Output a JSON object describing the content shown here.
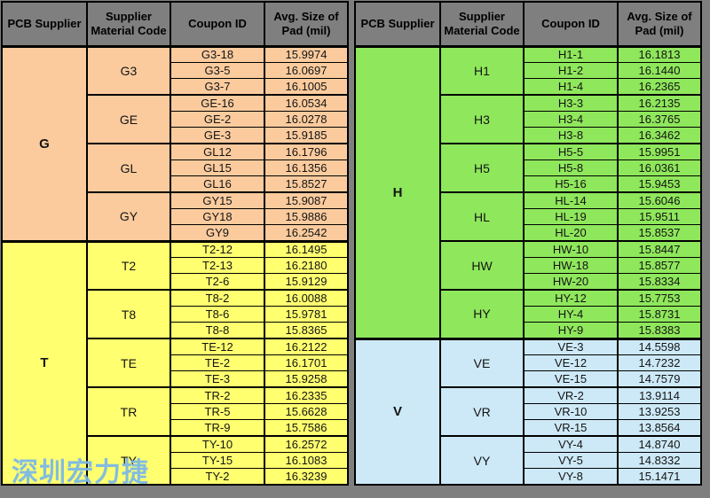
{
  "colors": {
    "page_bg": "#7F7F7F",
    "header_bg": "#7F7F7F",
    "supplier_g": "#FBCB9E",
    "supplier_t": "#FFFF70",
    "supplier_h": "#8FE75C",
    "supplier_v": "#CDE9F7",
    "watermark": "#79B7EA",
    "border": "#000000"
  },
  "watermark": {
    "text": "深圳宏力捷"
  },
  "tables": [
    {
      "name": "data-table-left",
      "headers": [
        "PCB Supplier",
        "Supplier Material Code",
        "Coupon ID",
        "Avg. Size of Pad (mil)"
      ],
      "suppliers": [
        {
          "name": "G",
          "color_key": "supplier_g",
          "groups": [
            {
              "code": "G3",
              "rows": [
                [
                  "G3-18",
                  "15.9974"
                ],
                [
                  "G3-5",
                  "16.0697"
                ],
                [
                  "G3-7",
                  "16.1005"
                ]
              ]
            },
            {
              "code": "GE",
              "rows": [
                [
                  "GE-16",
                  "16.0534"
                ],
                [
                  "GE-2",
                  "16.0278"
                ],
                [
                  "GE-3",
                  "15.9185"
                ]
              ]
            },
            {
              "code": "GL",
              "rows": [
                [
                  "GL12",
                  "16.1796"
                ],
                [
                  "GL15",
                  "16.1356"
                ],
                [
                  "GL16",
                  "15.8527"
                ]
              ]
            },
            {
              "code": "GY",
              "rows": [
                [
                  "GY15",
                  "15.9087"
                ],
                [
                  "GY18",
                  "15.9886"
                ],
                [
                  "GY9",
                  "16.2542"
                ]
              ]
            }
          ]
        },
        {
          "name": "T",
          "color_key": "supplier_t",
          "groups": [
            {
              "code": "T2",
              "rows": [
                [
                  "T2-12",
                  "16.1495"
                ],
                [
                  "T2-13",
                  "16.2180"
                ],
                [
                  "T2-6",
                  "15.9129"
                ]
              ]
            },
            {
              "code": "T8",
              "rows": [
                [
                  "T8-2",
                  "16.0088"
                ],
                [
                  "T8-6",
                  "15.9781"
                ],
                [
                  "T8-8",
                  "15.8365"
                ]
              ]
            },
            {
              "code": "TE",
              "rows": [
                [
                  "TE-12",
                  "16.2122"
                ],
                [
                  "TE-2",
                  "16.1701"
                ],
                [
                  "TE-3",
                  "15.9258"
                ]
              ]
            },
            {
              "code": "TR",
              "rows": [
                [
                  "TR-2",
                  "16.2335"
                ],
                [
                  "TR-5",
                  "15.6628"
                ],
                [
                  "TR-9",
                  "15.7586"
                ]
              ]
            },
            {
              "code": "TY",
              "rows": [
                [
                  "TY-10",
                  "16.2572"
                ],
                [
                  "TY-15",
                  "16.1083"
                ],
                [
                  "TY-2",
                  "16.3239"
                ]
              ]
            }
          ]
        }
      ]
    },
    {
      "name": "data-table-right",
      "headers": [
        "PCB Supplier",
        "Supplier Material Code",
        "Coupon ID",
        "Avg. Size of Pad (mil)"
      ],
      "suppliers": [
        {
          "name": "H",
          "color_key": "supplier_h",
          "groups": [
            {
              "code": "H1",
              "rows": [
                [
                  "H1-1",
                  "16.1813"
                ],
                [
                  "H1-2",
                  "16.1440"
                ],
                [
                  "H1-4",
                  "16.2365"
                ]
              ]
            },
            {
              "code": "H3",
              "rows": [
                [
                  "H3-3",
                  "16.2135"
                ],
                [
                  "H3-4",
                  "16.3765"
                ],
                [
                  "H3-8",
                  "16.3462"
                ]
              ]
            },
            {
              "code": "H5",
              "rows": [
                [
                  "H5-5",
                  "15.9951"
                ],
                [
                  "H5-8",
                  "16.0361"
                ],
                [
                  "H5-16",
                  "15.9453"
                ]
              ]
            },
            {
              "code": "HL",
              "rows": [
                [
                  "HL-14",
                  "15.6046"
                ],
                [
                  "HL-19",
                  "15.9511"
                ],
                [
                  "HL-20",
                  "15.8537"
                ]
              ]
            },
            {
              "code": "HW",
              "rows": [
                [
                  "HW-10",
                  "15.8447"
                ],
                [
                  "HW-18",
                  "15.8577"
                ],
                [
                  "HW-20",
                  "15.8334"
                ]
              ]
            },
            {
              "code": "HY",
              "rows": [
                [
                  "HY-12",
                  "15.7753"
                ],
                [
                  "HY-4",
                  "15.8731"
                ],
                [
                  "HY-9",
                  "15.8383"
                ]
              ]
            }
          ]
        },
        {
          "name": "V",
          "color_key": "supplier_v",
          "groups": [
            {
              "code": "VE",
              "rows": [
                [
                  "VE-3",
                  "14.5598"
                ],
                [
                  "VE-12",
                  "14.7232"
                ],
                [
                  "VE-15",
                  "14.7579"
                ]
              ]
            },
            {
              "code": "VR",
              "rows": [
                [
                  "VR-2",
                  "13.9114"
                ],
                [
                  "VR-10",
                  "13.9253"
                ],
                [
                  "VR-15",
                  "13.8564"
                ]
              ]
            },
            {
              "code": "VY",
              "rows": [
                [
                  "VY-4",
                  "14.8740"
                ],
                [
                  "VY-5",
                  "14.8332"
                ],
                [
                  "VY-8",
                  "15.1471"
                ]
              ]
            }
          ]
        }
      ]
    }
  ]
}
